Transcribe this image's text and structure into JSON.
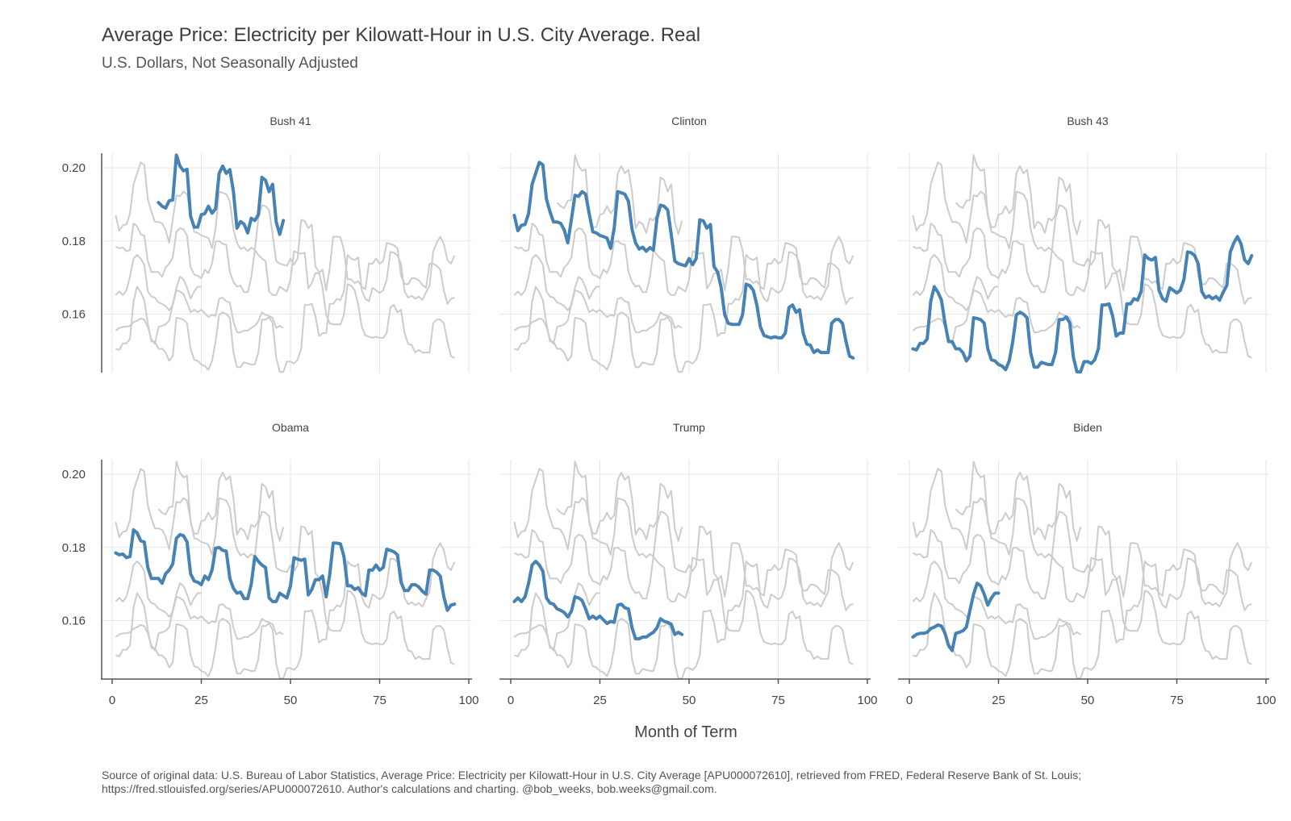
{
  "chart_data": {
    "type": "line",
    "title": "Average Price: Electricity per Kilowatt-Hour in U.S. City Average. Real",
    "subtitle": "U.S. Dollars, Not Seasonally Adjusted",
    "xlabel": "Month of Term",
    "ylabel": "",
    "caption": "Source of original data: U.S. Bureau of Labor Statistics, Average Price: Electricity per Kilowatt-Hour in U.S. City Average [APU000072610], retrieved from FRED, Federal Reserve Bank of St. Louis; https://fred.stlouisfed.org/series/APU000072610. Author's calculations and charting. @bob_weeks, bob.weeks@gmail.com.",
    "xlim": [
      0,
      100
    ],
    "ylim": [
      0.144,
      0.204
    ],
    "x_ticks": [
      0,
      25,
      50,
      75,
      100
    ],
    "y_ticks": [
      0.16,
      0.18,
      0.2
    ],
    "y_tick_labels": [
      "0.16",
      "0.18",
      "0.20"
    ],
    "grid": true,
    "highlight_color": "#4682b4",
    "background_line_color": "#cccccc",
    "facets": [
      "Bush 41",
      "Clinton",
      "Bush 43",
      "Obama",
      "Trump",
      "Biden"
    ],
    "series": [
      {
        "name": "Bush 41",
        "x": [
          13,
          14,
          15,
          16,
          17,
          18,
          19,
          20,
          21,
          22,
          23,
          24,
          25,
          26,
          27,
          28,
          29,
          30,
          31,
          32,
          33,
          34,
          35,
          36,
          37,
          38,
          39,
          40,
          41,
          42,
          43,
          44,
          45,
          46,
          47,
          48
        ],
        "values": [
          0.1905,
          0.1895,
          0.189,
          0.191,
          0.1912,
          0.2035,
          0.2005,
          0.1992,
          0.1996,
          0.1868,
          0.1838,
          0.1838,
          0.1872,
          0.1875,
          0.1895,
          0.1876,
          0.1888,
          0.1985,
          0.2005,
          0.1985,
          0.1995,
          0.1935,
          0.1835,
          0.1853,
          0.1846,
          0.1822,
          0.1862,
          0.1856,
          0.1872,
          0.1974,
          0.1966,
          0.1935,
          0.1955,
          0.1852,
          0.1818,
          0.1856
        ]
      },
      {
        "name": "Clinton",
        "x": [
          1,
          2,
          3,
          4,
          5,
          6,
          7,
          8,
          9,
          10,
          11,
          12,
          13,
          14,
          15,
          16,
          17,
          18,
          19,
          20,
          21,
          22,
          23,
          24,
          25,
          26,
          27,
          28,
          29,
          30,
          31,
          32,
          33,
          34,
          35,
          36,
          37,
          38,
          39,
          40,
          41,
          42,
          43,
          44,
          45,
          46,
          47,
          48,
          49,
          50,
          51,
          52,
          53,
          54,
          55,
          56,
          57,
          58,
          59,
          60,
          61,
          62,
          63,
          64,
          65,
          66,
          67,
          68,
          69,
          70,
          71,
          72,
          73,
          74,
          75,
          76,
          77,
          78,
          79,
          80,
          81,
          82,
          83,
          84,
          85,
          86,
          87,
          88,
          89,
          90,
          91,
          92,
          93,
          94,
          95,
          96
        ],
        "values": [
          0.187,
          0.1828,
          0.1843,
          0.1845,
          0.1875,
          0.1955,
          0.1985,
          0.2015,
          0.2008,
          0.1915,
          0.188,
          0.1852,
          0.1852,
          0.1848,
          0.183,
          0.1795,
          0.1858,
          0.1925,
          0.1922,
          0.1935,
          0.1928,
          0.1875,
          0.1825,
          0.1822,
          0.1815,
          0.1812,
          0.1808,
          0.178,
          0.1835,
          0.1935,
          0.1932,
          0.1928,
          0.1908,
          0.1832,
          0.1795,
          0.1778,
          0.1783,
          0.1772,
          0.1782,
          0.1775,
          0.1862,
          0.1898,
          0.1895,
          0.1885,
          0.1818,
          0.1745,
          0.1738,
          0.1735,
          0.1732,
          0.1752,
          0.1735,
          0.1752,
          0.1858,
          0.1855,
          0.1835,
          0.1845,
          0.173,
          0.1715,
          0.1672,
          0.1598,
          0.1575,
          0.1572,
          0.1572,
          0.1572,
          0.1598,
          0.1682,
          0.1678,
          0.1665,
          0.1625,
          0.1565,
          0.1542,
          0.1538,
          0.1535,
          0.1538,
          0.1535,
          0.1535,
          0.1548,
          0.1618,
          0.1625,
          0.1605,
          0.1612,
          0.1548,
          0.1518,
          0.1515,
          0.1495,
          0.1502,
          0.1495,
          0.1495,
          0.1495,
          0.1575,
          0.1585,
          0.1585,
          0.1575,
          0.1525,
          0.1485,
          0.148
        ]
      },
      {
        "name": "Bush 43",
        "x": [
          1,
          2,
          3,
          4,
          5,
          6,
          7,
          8,
          9,
          10,
          11,
          12,
          13,
          14,
          15,
          16,
          17,
          18,
          19,
          20,
          21,
          22,
          23,
          24,
          25,
          26,
          27,
          28,
          29,
          30,
          31,
          32,
          33,
          34,
          35,
          36,
          37,
          38,
          39,
          40,
          41,
          42,
          43,
          44,
          45,
          46,
          47,
          48,
          49,
          50,
          51,
          52,
          53,
          54,
          55,
          56,
          57,
          58,
          59,
          60,
          61,
          62,
          63,
          64,
          65,
          66,
          67,
          68,
          69,
          70,
          71,
          72,
          73,
          74,
          75,
          76,
          77,
          78,
          79,
          80,
          81,
          82,
          83,
          84,
          85,
          86,
          87,
          88,
          89,
          90,
          91,
          92,
          93,
          94,
          95,
          96
        ],
        "values": [
          0.1505,
          0.1502,
          0.152,
          0.152,
          0.1532,
          0.1635,
          0.1675,
          0.166,
          0.1638,
          0.1575,
          0.1525,
          0.1525,
          0.1505,
          0.1505,
          0.1495,
          0.1472,
          0.1485,
          0.159,
          0.1588,
          0.1585,
          0.1575,
          0.1505,
          0.1475,
          0.1472,
          0.1462,
          0.1458,
          0.1448,
          0.1472,
          0.1525,
          0.1598,
          0.1605,
          0.16,
          0.159,
          0.1495,
          0.1455,
          0.1455,
          0.1468,
          0.1465,
          0.1462,
          0.1462,
          0.1495,
          0.1585,
          0.1585,
          0.1592,
          0.1575,
          0.1482,
          0.1442,
          0.1442,
          0.147,
          0.147,
          0.1465,
          0.1475,
          0.1505,
          0.1625,
          0.1625,
          0.1628,
          0.1595,
          0.154,
          0.1548,
          0.1548,
          0.1628,
          0.1628,
          0.1642,
          0.1638,
          0.1662,
          0.1762,
          0.1752,
          0.1748,
          0.1755,
          0.1665,
          0.1642,
          0.1635,
          0.1672,
          0.1665,
          0.1658,
          0.1665,
          0.1695,
          0.177,
          0.1768,
          0.176,
          0.1738,
          0.1662,
          0.1645,
          0.165,
          0.1642,
          0.1648,
          0.1638,
          0.166,
          0.1678,
          0.177,
          0.1795,
          0.1812,
          0.1792,
          0.1748,
          0.1738,
          0.176
        ]
      },
      {
        "name": "Obama",
        "x": [
          1,
          2,
          3,
          4,
          5,
          6,
          7,
          8,
          9,
          10,
          11,
          12,
          13,
          14,
          15,
          16,
          17,
          18,
          19,
          20,
          21,
          22,
          23,
          24,
          25,
          26,
          27,
          28,
          29,
          30,
          31,
          32,
          33,
          34,
          35,
          36,
          37,
          38,
          39,
          40,
          41,
          42,
          43,
          44,
          45,
          46,
          47,
          48,
          49,
          50,
          51,
          52,
          53,
          54,
          55,
          56,
          57,
          58,
          59,
          60,
          61,
          62,
          63,
          64,
          65,
          66,
          67,
          68,
          69,
          70,
          71,
          72,
          73,
          74,
          75,
          76,
          77,
          78,
          79,
          80,
          81,
          82,
          83,
          84,
          85,
          86,
          87,
          88,
          89,
          90,
          91,
          92,
          93,
          94,
          95,
          96
        ],
        "values": [
          0.1785,
          0.178,
          0.1782,
          0.1772,
          0.1775,
          0.1848,
          0.184,
          0.1818,
          0.1815,
          0.1745,
          0.1715,
          0.1715,
          0.1715,
          0.1702,
          0.1728,
          0.1738,
          0.1755,
          0.1825,
          0.1835,
          0.1832,
          0.1815,
          0.1728,
          0.1708,
          0.1705,
          0.1698,
          0.1722,
          0.1712,
          0.1738,
          0.1798,
          0.18,
          0.1792,
          0.179,
          0.1715,
          0.1688,
          0.1675,
          0.1678,
          0.166,
          0.166,
          0.17,
          0.1775,
          0.1762,
          0.1752,
          0.1745,
          0.1662,
          0.1652,
          0.1652,
          0.1675,
          0.1668,
          0.1662,
          0.1695,
          0.1772,
          0.1768,
          0.1765,
          0.1768,
          0.167,
          0.1685,
          0.1712,
          0.1712,
          0.1722,
          0.1665,
          0.1725,
          0.1812,
          0.1812,
          0.181,
          0.1775,
          0.1695,
          0.1695,
          0.1685,
          0.169,
          0.1675,
          0.1668,
          0.1738,
          0.1738,
          0.1752,
          0.1738,
          0.1745,
          0.1795,
          0.1792,
          0.1788,
          0.178,
          0.1705,
          0.1682,
          0.1682,
          0.1698,
          0.1698,
          0.1692,
          0.168,
          0.1672,
          0.1738,
          0.1738,
          0.1732,
          0.1722,
          0.1665,
          0.1628,
          0.1642,
          0.1645
        ]
      },
      {
        "name": "Trump",
        "x": [
          1,
          2,
          3,
          4,
          5,
          6,
          7,
          8,
          9,
          10,
          11,
          12,
          13,
          14,
          15,
          16,
          17,
          18,
          19,
          20,
          21,
          22,
          23,
          24,
          25,
          26,
          27,
          28,
          29,
          30,
          31,
          32,
          33,
          34,
          35,
          36,
          37,
          38,
          39,
          40,
          41,
          42,
          43,
          44,
          45,
          46,
          47,
          48
        ],
        "values": [
          0.1652,
          0.1662,
          0.1652,
          0.1665,
          0.1702,
          0.1752,
          0.1762,
          0.1752,
          0.1735,
          0.1662,
          0.1648,
          0.1645,
          0.1632,
          0.1628,
          0.1622,
          0.161,
          0.1625,
          0.1665,
          0.1662,
          0.1655,
          0.1632,
          0.1605,
          0.1612,
          0.1605,
          0.1612,
          0.1602,
          0.1592,
          0.1598,
          0.1595,
          0.1642,
          0.1645,
          0.1635,
          0.1632,
          0.158,
          0.155,
          0.155,
          0.1555,
          0.1555,
          0.1562,
          0.1568,
          0.158,
          0.1605,
          0.1598,
          0.1595,
          0.159,
          0.1562,
          0.1568,
          0.1562
        ]
      },
      {
        "name": "Biden",
        "x": [
          1,
          2,
          3,
          4,
          5,
          6,
          7,
          8,
          9,
          10,
          11,
          12,
          13,
          14,
          15,
          16,
          17,
          18,
          19,
          20,
          21,
          22,
          23,
          24,
          25
        ],
        "values": [
          0.1555,
          0.1562,
          0.1565,
          0.1565,
          0.1568,
          0.1578,
          0.1582,
          0.1588,
          0.1585,
          0.1565,
          0.1532,
          0.1518,
          0.1565,
          0.1568,
          0.1572,
          0.1582,
          0.1628,
          0.1672,
          0.1702,
          0.1695,
          0.1672,
          0.1642,
          0.1662,
          0.1675,
          0.1675
        ]
      }
    ]
  }
}
